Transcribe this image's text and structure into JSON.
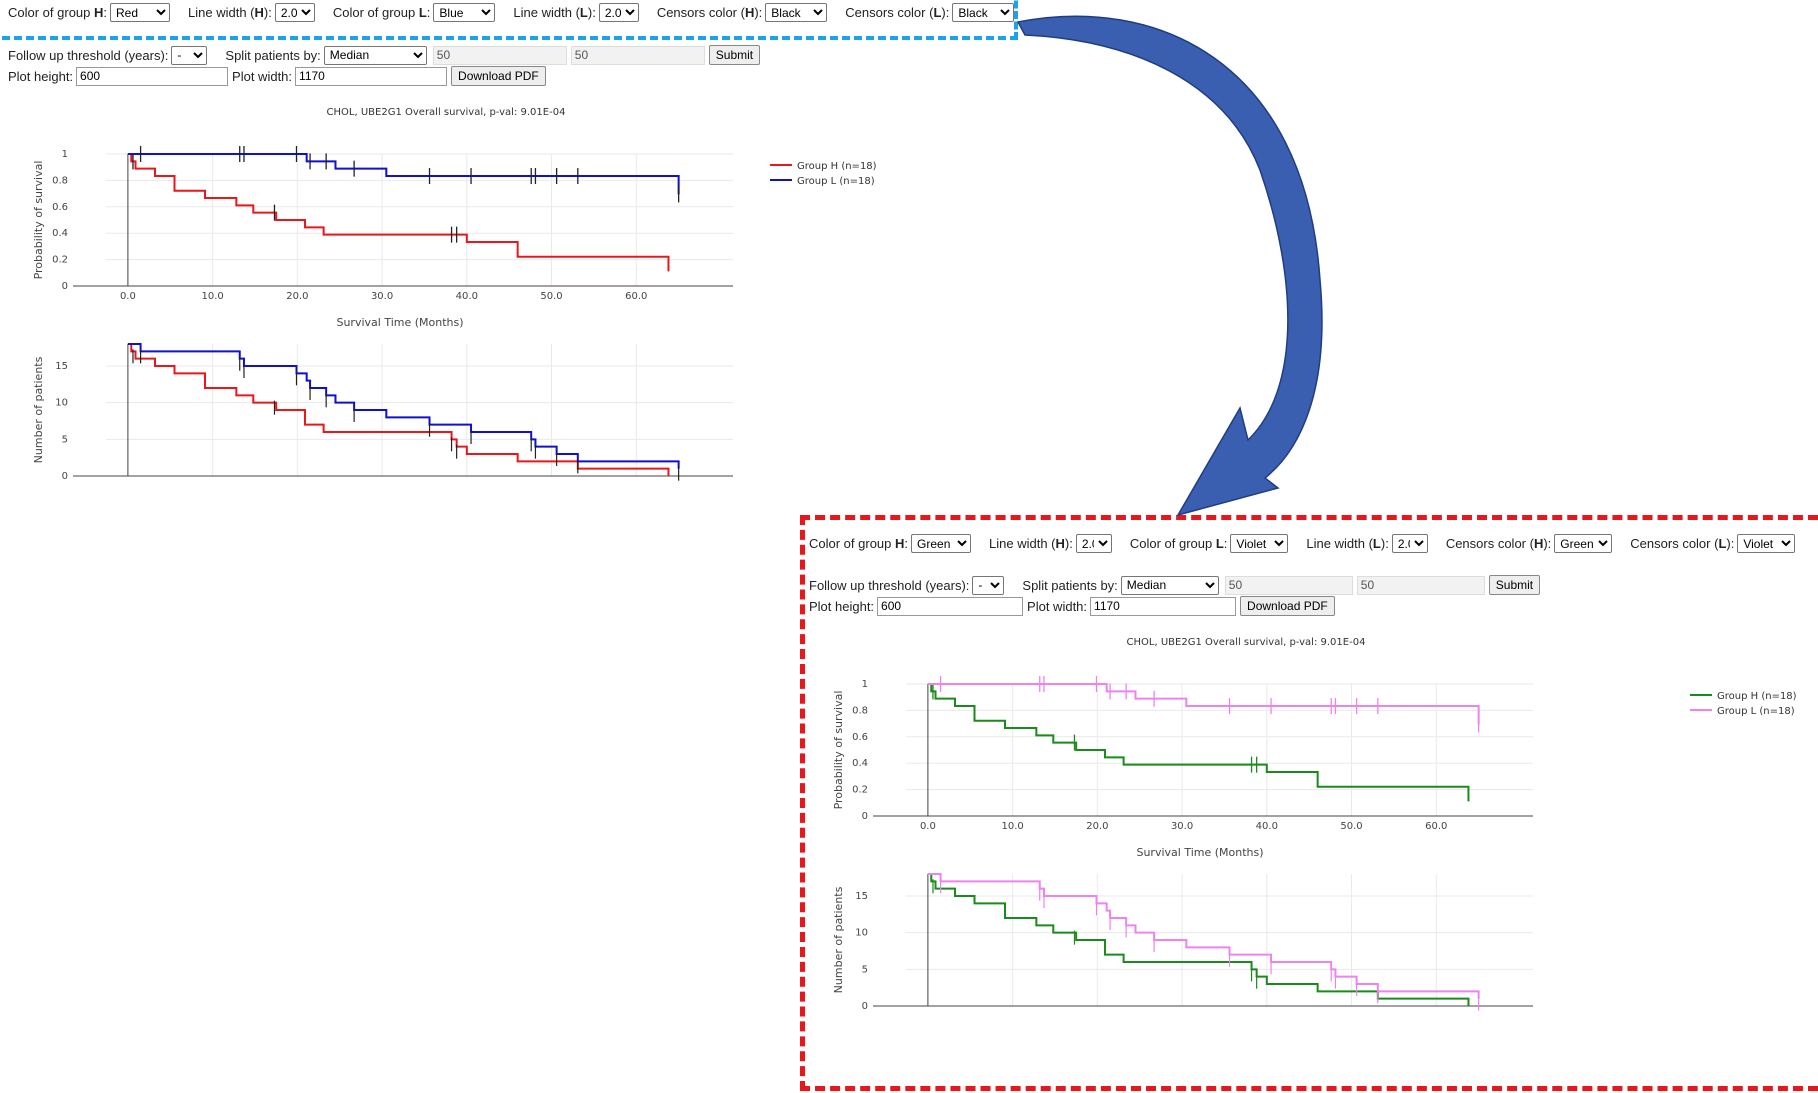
{
  "top": {
    "controls": {
      "color_h_label": "Color of group ",
      "color_h_bold": "H",
      "color_h_value": "Red",
      "lw_h_label": "Line width (",
      "lw_h_bold": "H",
      "lw_h_suffix": "):",
      "lw_h_value": "2.0",
      "color_l_label": "Color of group ",
      "color_l_bold": "L",
      "color_l_value": "Blue",
      "lw_l_label": "Line width (",
      "lw_l_bold": "L",
      "lw_l_suffix": "):",
      "lw_l_value": "2.0",
      "cens_h_label": "Censors color (",
      "cens_h_bold": "H",
      "cens_h_suffix": "):",
      "cens_h_value": "Black",
      "cens_l_label": "Censors color (",
      "cens_l_bold": "L",
      "cens_l_suffix": "):",
      "cens_l_value": "Black",
      "followup_label": "Follow up threshold (years):",
      "followup_value": "-",
      "split_label": "Split patients by:",
      "split_value": "Median",
      "split_low": "50",
      "split_high": "50",
      "submit_label": "Submit",
      "plot_height_label": "Plot height:",
      "plot_height_value": "600",
      "plot_width_label": "Plot width:",
      "plot_width_value": "1170",
      "download_label": "Download PDF"
    }
  },
  "bottom": {
    "controls": {
      "color_h_label": "Color of group ",
      "color_h_bold": "H",
      "color_h_value": "Green",
      "lw_h_label": "Line width (",
      "lw_h_bold": "H",
      "lw_h_suffix": "):",
      "lw_h_value": "2.0",
      "color_l_label": "Color of group ",
      "color_l_bold": "L",
      "color_l_value": "Violet",
      "lw_l_label": "Line width (",
      "lw_l_bold": "L",
      "lw_l_suffix": "):",
      "lw_l_value": "2.0",
      "cens_h_label": "Censors color (",
      "cens_h_bold": "H",
      "cens_h_suffix": "):",
      "cens_h_value": "Green",
      "cens_l_label": "Censors color (",
      "cens_l_bold": "L",
      "cens_l_suffix": "):",
      "cens_l_value": "Violet",
      "followup_label": "Follow up threshold (years):",
      "followup_value": "-",
      "split_label": "Split patients by:",
      "split_value": "Median",
      "split_low": "50",
      "split_high": "50",
      "submit_label": "Submit",
      "plot_height_label": "Plot height:",
      "plot_height_value": "600",
      "plot_width_label": "Plot width:",
      "plot_width_value": "1170",
      "download_label": "Download PDF"
    }
  },
  "colors": {
    "top_h": "#e8171b",
    "top_l": "#1010d0",
    "top_censor": "#222222",
    "bottom_h": "#1a8a1a",
    "bottom_l": "#ee82ee",
    "frame_blue": "#1aa3e8",
    "frame_red": "#e8171b",
    "arrow": "#3a5fb0"
  },
  "chart_data": [
    {
      "type": "line",
      "title": "CHOL, UBE2G1 Overall survival, p-val: 9.01E-04",
      "xlabel": "Survival Time (Months)",
      "ylabel": "Probability of survival",
      "xlim": [
        -4,
        70
      ],
      "ylim": [
        0,
        1
      ],
      "x_ticks": [
        "0.0",
        "10.0",
        "20.0",
        "30.0",
        "40.0",
        "50.0",
        "60.0"
      ],
      "y_ticks": [
        "0",
        "0.2",
        "0.4",
        "0.6",
        "0.8",
        "1"
      ],
      "legend_position": "top-right",
      "series": [
        {
          "name": "Group H (n=18)",
          "x": [
            0,
            0.4,
            0.9,
            3.2,
            5.5,
            9.1,
            12.8,
            14.8,
            17.5,
            20.9,
            23.1,
            40.0,
            46.0,
            63.8
          ],
          "y": [
            1,
            0.944,
            0.889,
            0.833,
            0.722,
            0.667,
            0.611,
            0.556,
            0.5,
            0.444,
            0.389,
            0.333,
            0.222,
            0.111
          ],
          "censor_x": [
            0.6,
            17.3,
            38.2,
            38.8
          ]
        },
        {
          "name": "Group L (n=18)",
          "x": [
            0,
            11.2,
            21.1,
            24.5,
            30.5,
            65.0
          ],
          "y": [
            1,
            1,
            0.944,
            0.889,
            0.833,
            0.694
          ],
          "censor_x": [
            1.5,
            13.2,
            13.7,
            19.9,
            21.5,
            23.4,
            26.7,
            35.6,
            40.5,
            47.6,
            48.1,
            50.6,
            53.1,
            65.0
          ]
        }
      ]
    },
    {
      "type": "line",
      "title": "",
      "xlabel": "",
      "ylabel": "Number of patients",
      "xlim": [
        -4,
        70
      ],
      "ylim": [
        0,
        18
      ],
      "y_ticks": [
        "0",
        "5",
        "10",
        "15"
      ],
      "series": [
        {
          "name": "Group H (n=18)",
          "x": [
            0,
            0.4,
            0.9,
            3.2,
            5.5,
            9.1,
            12.8,
            14.8,
            17.5,
            20.9,
            23.1,
            38.2,
            38.8,
            40.0,
            46.0,
            53.1,
            63.8
          ],
          "y": [
            18,
            17,
            16,
            15,
            14,
            12,
            11,
            10,
            9,
            7,
            6,
            5,
            4,
            3,
            2,
            1,
            0
          ]
        },
        {
          "name": "Group L (n=18)",
          "x": [
            0,
            1.5,
            11.2,
            13.2,
            13.7,
            19.9,
            21.1,
            21.5,
            23.4,
            24.5,
            26.7,
            30.5,
            35.6,
            40.5,
            47.6,
            48.1,
            50.6,
            53.1,
            65.0
          ],
          "y": [
            18,
            17,
            17,
            16,
            15,
            14,
            13,
            12,
            11,
            10,
            9,
            8,
            7,
            6,
            5,
            4,
            3,
            2,
            1
          ]
        }
      ]
    }
  ]
}
